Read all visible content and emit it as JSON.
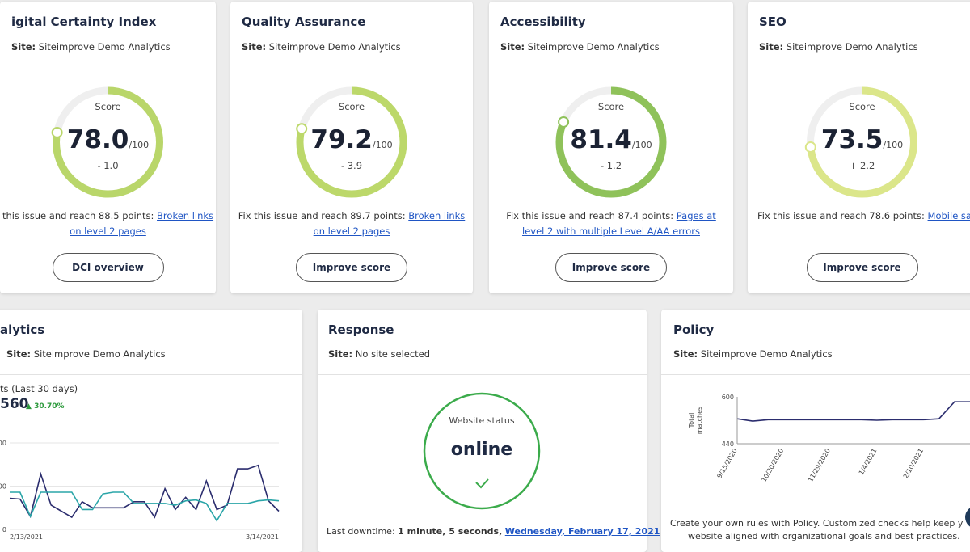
{
  "score_cards": [
    {
      "title": "igital Certainty Index",
      "site_label": "Site:",
      "site": "Siteimprove Demo Analytics",
      "score_caption": "Score",
      "score": 78.0,
      "score_label": "78.0",
      "max": "/100",
      "change": "- 1.0",
      "fix_text": "this issue and reach 88.5 points:",
      "fix_link": "Broken links on level 2 pages",
      "button": "DCI overview",
      "color": "#b9d66a"
    },
    {
      "title": "Quality Assurance",
      "site_label": "Site:",
      "site": "Siteimprove Demo Analytics",
      "score_caption": "Score",
      "score": 79.2,
      "score_label": "79.2",
      "max": "/100",
      "change": "- 3.9",
      "fix_text": "Fix this issue and reach 89.7 points:",
      "fix_link": "Broken links on level 2 pages",
      "button": "Improve score",
      "color": "#bcd86a"
    },
    {
      "title": "Accessibility",
      "site_label": "Site:",
      "site": "Siteimprove Demo Analytics",
      "score_caption": "Score",
      "score": 81.4,
      "score_label": "81.4",
      "max": "/100",
      "change": "- 1.2",
      "fix_text": "Fix this issue and reach 87.4 points:",
      "fix_link": "Pages at level 2 with multiple Level A/AA errors",
      "button": "Improve score",
      "color": "#8fc25a"
    },
    {
      "title": "SEO",
      "site_label": "Site:",
      "site": "Siteimprove Demo Analytics",
      "score_caption": "Score",
      "score": 73.5,
      "score_label": "73.5",
      "max": "/100",
      "change": "+ 2.2",
      "fix_text": "Fix this issue and reach 78.6 points:",
      "fix_link": "Mobile sa",
      "button": "Improve score",
      "color": "#dbe68a"
    }
  ],
  "analytics": {
    "title": "alytics",
    "site_label": "Site:",
    "site": "Siteimprove Demo Analytics",
    "metric": "ts (Last 30 days)",
    "total": "560",
    "trend": "30.70%",
    "chart": {
      "type": "line",
      "categories": [
        "2/13/2021",
        null,
        null,
        null,
        null,
        null,
        null,
        null,
        null,
        null,
        null,
        null,
        null,
        null,
        null,
        null,
        null,
        null,
        null,
        null,
        null,
        null,
        null,
        null,
        null,
        null,
        "3/14/2021"
      ],
      "ylim": [
        0,
        1000
      ],
      "yticks": [
        0,
        500,
        {
          "value": 1000,
          "label": "000"
        }
      ],
      "grid": true,
      "series": [
        {
          "color": "#2b2d6e",
          "values": [
            360,
            350,
            150,
            640,
            280,
            210,
            140,
            320,
            250,
            250,
            250,
            250,
            320,
            320,
            140,
            470,
            230,
            370,
            230,
            560,
            230,
            280,
            700,
            700,
            740,
            330,
            210
          ]
        },
        {
          "color": "#2aa5a8",
          "values": [
            430,
            430,
            150,
            430,
            430,
            430,
            430,
            230,
            230,
            410,
            430,
            430,
            300,
            300,
            300,
            300,
            280,
            330,
            340,
            300,
            100,
            300,
            300,
            300,
            330,
            340,
            330
          ]
        }
      ]
    }
  },
  "response": {
    "title": "Response",
    "site_label": "Site:",
    "site": "No site selected",
    "status_label": "Website status",
    "status": "online",
    "downtime_label": "Last downtime:",
    "downtime": "1 minute, 5 seconds,",
    "downtime_date": "Wednesday, February 17, 2021"
  },
  "policy": {
    "title": "Policy",
    "site_label": "Site:",
    "site": "Siteimprove Demo Analytics",
    "chart": {
      "type": "line",
      "y_label": [
        "Total",
        "matches"
      ],
      "categories": [
        "9/15/2020",
        null,
        null,
        "10/20/2020",
        null,
        null,
        "11/29/2020",
        null,
        null,
        "1/4/2021",
        null,
        null,
        "2/10/2021",
        null,
        null,
        null
      ],
      "ylim": [
        440,
        600
      ],
      "yticks": [
        440,
        600
      ],
      "series": [
        {
          "color": "#2b2d6e",
          "values": [
            525,
            517,
            522,
            522,
            522,
            522,
            522,
            522,
            522,
            520,
            522,
            522,
            522,
            525,
            583,
            583
          ]
        }
      ]
    },
    "text": [
      "Create your own rules with Policy. Customized checks help keep y",
      "website aligned with organizational goals and best practices."
    ]
  }
}
